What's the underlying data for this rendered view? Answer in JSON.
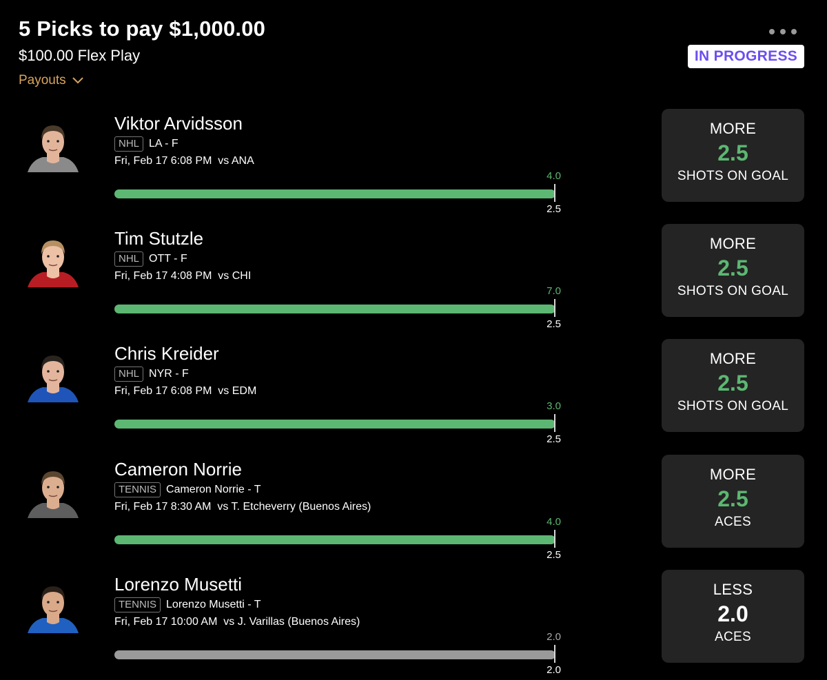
{
  "header": {
    "title": "5 Picks to pay $1,000.00",
    "subtitle": "$100.00 Flex Play",
    "payouts_label": "Payouts",
    "status": "IN PROGRESS"
  },
  "colors": {
    "accent_green": "#5cb772",
    "status_purple": "#6c4ef2",
    "payouts_gold": "#d9a55c",
    "neutral_gray": "#9a9a9a"
  },
  "picks": [
    {
      "name": "Viktor Arvidsson",
      "league": "NHL",
      "team_pos": "LA - F",
      "game_time": "Fri, Feb 17 6:08 PM  vs ANA",
      "current": "4.0",
      "line": "2.5",
      "direction": "MORE",
      "stat": "SHOTS ON GOAL",
      "status": "hit",
      "progress": 1.0,
      "jersey": "#8a8a8a",
      "hair": "#4a3a2a",
      "skin": "#e2b59b"
    },
    {
      "name": "Tim Stutzle",
      "league": "NHL",
      "team_pos": "OTT - F",
      "game_time": "Fri, Feb 17 4:08 PM  vs CHI",
      "current": "7.0",
      "line": "2.5",
      "direction": "MORE",
      "stat": "SHOTS ON GOAL",
      "status": "hit",
      "progress": 1.0,
      "jersey": "#b81d24",
      "hair": "#b69060",
      "skin": "#edc1a6"
    },
    {
      "name": "Chris Kreider",
      "league": "NHL",
      "team_pos": "NYR - F",
      "game_time": "Fri, Feb 17 6:08 PM  vs EDM",
      "current": "3.0",
      "line": "2.5",
      "direction": "MORE",
      "stat": "SHOTS ON GOAL",
      "status": "hit",
      "progress": 1.0,
      "jersey": "#1f55b8",
      "hair": "#2a241f",
      "skin": "#e4b59d"
    },
    {
      "name": "Cameron Norrie",
      "league": "TENNIS",
      "team_pos": "Cameron Norrie - T",
      "game_time": "Fri, Feb 17 8:30 AM  vs T. Etcheverry (Buenos Aires)",
      "current": "4.0",
      "line": "2.5",
      "direction": "MORE",
      "stat": "ACES",
      "status": "hit",
      "progress": 1.0,
      "jersey": "#5e5e5e",
      "hair": "#5a4530",
      "skin": "#dcae90"
    },
    {
      "name": "Lorenzo Musetti",
      "league": "TENNIS",
      "team_pos": "Lorenzo Musetti - T",
      "game_time": "Fri, Feb 17 10:00 AM  vs J. Varillas (Buenos Aires)",
      "current": "2.0",
      "line": "2.0",
      "direction": "LESS",
      "stat": "ACES",
      "status": "push",
      "progress": 1.0,
      "jersey": "#2060c0",
      "hair": "#2b2118",
      "skin": "#d9a98a"
    }
  ]
}
